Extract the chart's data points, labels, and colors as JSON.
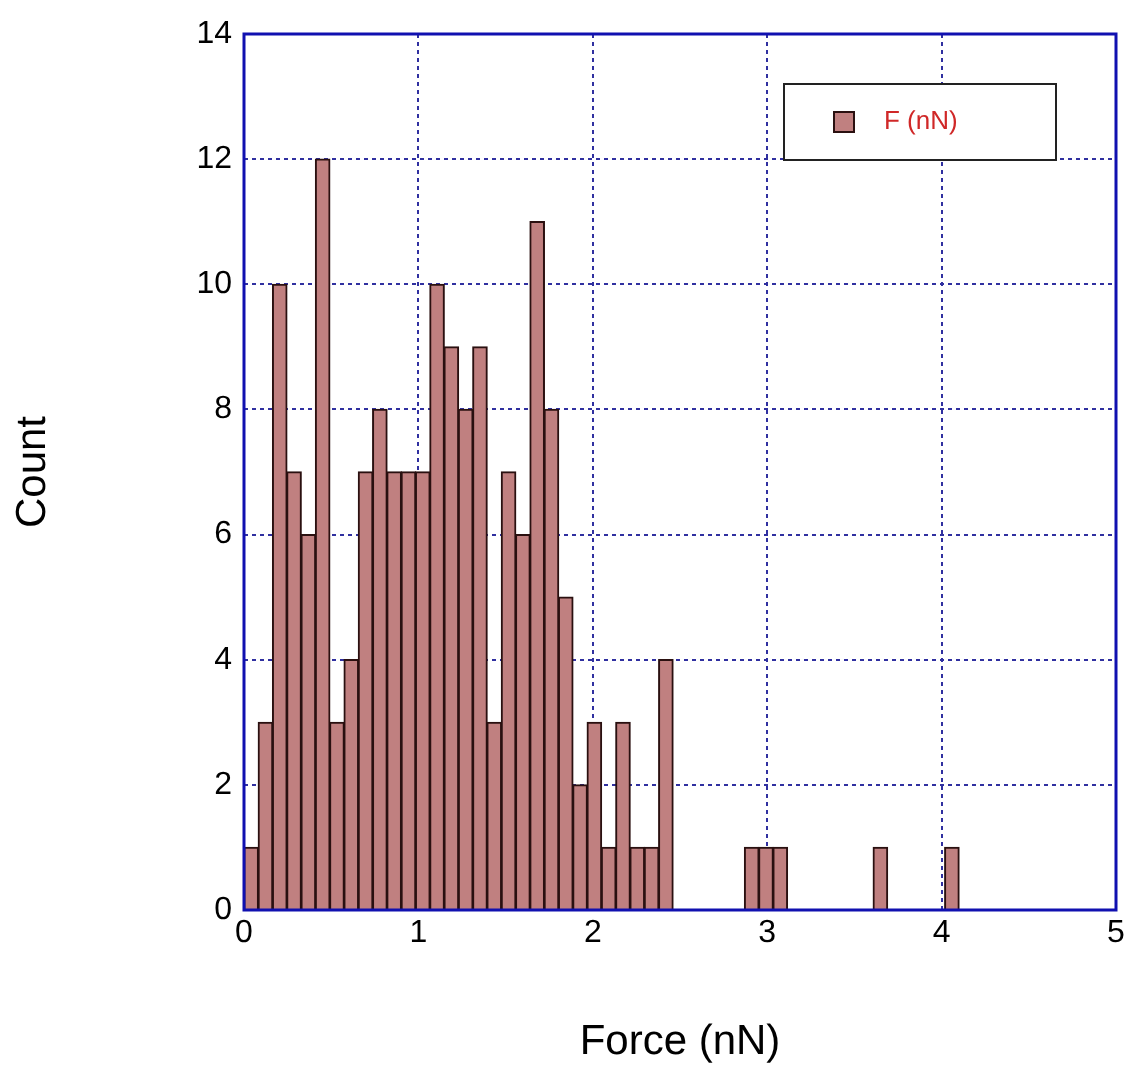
{
  "chart_data": {
    "type": "histogram",
    "xlabel": "Force (nN)",
    "ylabel": "Count",
    "bins": [
      0,
      0.082,
      0.164,
      0.246,
      0.328,
      0.41,
      0.492,
      0.574,
      0.656,
      0.738,
      0.82,
      0.902,
      0.984,
      1.066,
      1.148,
      1.23,
      1.312,
      1.394,
      1.476,
      1.558,
      1.64,
      1.722,
      1.804,
      1.886,
      1.968,
      2.05,
      2.132,
      2.214,
      2.296,
      2.378,
      2.46,
      2.542,
      2.624,
      2.706,
      2.788,
      2.87,
      2.952,
      3.034,
      3.116,
      3.198,
      3.28,
      3.362,
      3.444,
      3.526,
      3.608,
      3.69,
      3.772,
      3.854,
      3.936,
      4.018,
      4.1
    ],
    "series": [
      {
        "name": "F (nN)",
        "color": "#c08080",
        "values": [
          1,
          3,
          10,
          7,
          6,
          12,
          3,
          4,
          7,
          8,
          7,
          7,
          7,
          10,
          9,
          8,
          9,
          3,
          7,
          6,
          11,
          8,
          5,
          2,
          3,
          1,
          3,
          1,
          1,
          4,
          0,
          0,
          0,
          0,
          0,
          1,
          1,
          1,
          0,
          0,
          0,
          0,
          0,
          0,
          1,
          0,
          0,
          0,
          0,
          1
        ]
      }
    ],
    "xlim": [
      0,
      5
    ],
    "xticks": [
      0,
      1,
      2,
      3,
      4,
      5
    ],
    "ylim": [
      0,
      14
    ],
    "yticks": [
      0,
      2,
      4,
      6,
      8,
      10,
      12,
      14
    ],
    "grid": true,
    "legend": "top right"
  }
}
